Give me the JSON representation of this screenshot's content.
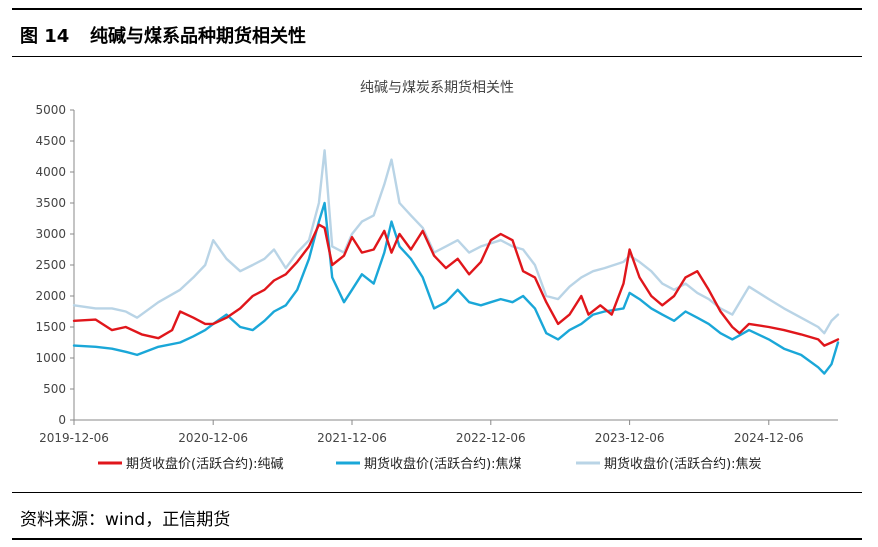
{
  "figure": {
    "label": "图 14",
    "title": "纯碱与煤系品种期货相关性",
    "source": "资料来源：wind，正信期货"
  },
  "chart_data": {
    "type": "line",
    "title": "纯碱与煤炭系期货相关性",
    "xlabel": "",
    "ylabel": "",
    "ylim": [
      0,
      5000
    ],
    "yticks": [
      0,
      500,
      1000,
      1500,
      2000,
      2500,
      3000,
      3500,
      4000,
      4500,
      5000
    ],
    "xlim": [
      "2019-12-06",
      "2025-06-06"
    ],
    "xticks": [
      "2019-12-06",
      "2020-12-06",
      "2021-12-06",
      "2022-12-06",
      "2023-12-06",
      "2024-12-06"
    ],
    "grid": false,
    "legend": "bottom",
    "colors": {
      "soda": "#e0161b",
      "coking_coal": "#1aa7d8",
      "coke": "#b9d4e6"
    },
    "series": [
      {
        "name": "期货收盘价(活跃合约):纯碱",
        "key": "soda",
        "points": [
          [
            "2019-12-06",
            1600
          ],
          [
            "2020-02-01",
            1620
          ],
          [
            "2020-03-15",
            1450
          ],
          [
            "2020-04-20",
            1500
          ],
          [
            "2020-06-01",
            1380
          ],
          [
            "2020-07-15",
            1320
          ],
          [
            "2020-08-20",
            1450
          ],
          [
            "2020-09-10",
            1750
          ],
          [
            "2020-10-15",
            1650
          ],
          [
            "2020-11-15",
            1550
          ],
          [
            "2020-12-06",
            1550
          ],
          [
            "2021-01-10",
            1650
          ],
          [
            "2021-02-15",
            1800
          ],
          [
            "2021-03-20",
            2000
          ],
          [
            "2021-04-20",
            2100
          ],
          [
            "2021-05-15",
            2250
          ],
          [
            "2021-06-15",
            2350
          ],
          [
            "2021-07-15",
            2550
          ],
          [
            "2021-08-15",
            2800
          ],
          [
            "2021-09-10",
            3150
          ],
          [
            "2021-09-25",
            3100
          ],
          [
            "2021-10-15",
            2500
          ],
          [
            "2021-11-15",
            2650
          ],
          [
            "2021-12-06",
            2950
          ],
          [
            "2022-01-01",
            2700
          ],
          [
            "2022-02-01",
            2750
          ],
          [
            "2022-03-01",
            3050
          ],
          [
            "2022-03-20",
            2700
          ],
          [
            "2022-04-10",
            3000
          ],
          [
            "2022-05-10",
            2750
          ],
          [
            "2022-06-10",
            3050
          ],
          [
            "2022-07-10",
            2650
          ],
          [
            "2022-08-10",
            2450
          ],
          [
            "2022-09-10",
            2600
          ],
          [
            "2022-10-10",
            2350
          ],
          [
            "2022-11-10",
            2550
          ],
          [
            "2022-12-06",
            2900
          ],
          [
            "2023-01-01",
            3000
          ],
          [
            "2023-02-01",
            2900
          ],
          [
            "2023-03-01",
            2400
          ],
          [
            "2023-04-01",
            2300
          ],
          [
            "2023-05-01",
            1900
          ],
          [
            "2023-06-01",
            1550
          ],
          [
            "2023-07-01",
            1700
          ],
          [
            "2023-08-01",
            2000
          ],
          [
            "2023-08-20",
            1700
          ],
          [
            "2023-09-20",
            1850
          ],
          [
            "2023-10-20",
            1700
          ],
          [
            "2023-11-20",
            2200
          ],
          [
            "2023-12-06",
            2750
          ],
          [
            "2024-01-01",
            2300
          ],
          [
            "2024-02-01",
            2000
          ],
          [
            "2024-03-01",
            1850
          ],
          [
            "2024-04-01",
            2000
          ],
          [
            "2024-05-01",
            2300
          ],
          [
            "2024-06-01",
            2400
          ],
          [
            "2024-07-01",
            2100
          ],
          [
            "2024-08-01",
            1750
          ],
          [
            "2024-09-01",
            1500
          ],
          [
            "2024-09-20",
            1400
          ],
          [
            "2024-10-15",
            1550
          ],
          [
            "2024-12-06",
            1500
          ],
          [
            "2025-01-15",
            1450
          ],
          [
            "2025-03-01",
            1380
          ],
          [
            "2025-04-15",
            1300
          ],
          [
            "2025-05-01",
            1200
          ],
          [
            "2025-05-20",
            1250
          ],
          [
            "2025-06-06",
            1300
          ]
        ]
      },
      {
        "name": "期货收盘价(活跃合约):焦煤",
        "key": "coking_coal",
        "points": [
          [
            "2019-12-06",
            1200
          ],
          [
            "2020-02-01",
            1180
          ],
          [
            "2020-03-15",
            1150
          ],
          [
            "2020-04-20",
            1100
          ],
          [
            "2020-05-20",
            1050
          ],
          [
            "2020-07-15",
            1180
          ],
          [
            "2020-09-10",
            1250
          ],
          [
            "2020-10-15",
            1350
          ],
          [
            "2020-11-15",
            1450
          ],
          [
            "2020-12-06",
            1550
          ],
          [
            "2021-01-10",
            1700
          ],
          [
            "2021-02-15",
            1500
          ],
          [
            "2021-03-20",
            1450
          ],
          [
            "2021-04-20",
            1600
          ],
          [
            "2021-05-15",
            1750
          ],
          [
            "2021-06-15",
            1850
          ],
          [
            "2021-07-15",
            2100
          ],
          [
            "2021-08-15",
            2600
          ],
          [
            "2021-09-10",
            3200
          ],
          [
            "2021-09-25",
            3500
          ],
          [
            "2021-10-15",
            2300
          ],
          [
            "2021-11-15",
            1900
          ],
          [
            "2021-12-06",
            2100
          ],
          [
            "2022-01-01",
            2350
          ],
          [
            "2022-02-01",
            2200
          ],
          [
            "2022-03-01",
            2700
          ],
          [
            "2022-03-20",
            3200
          ],
          [
            "2022-04-10",
            2800
          ],
          [
            "2022-05-10",
            2600
          ],
          [
            "2022-06-10",
            2300
          ],
          [
            "2022-07-10",
            1800
          ],
          [
            "2022-08-10",
            1900
          ],
          [
            "2022-09-10",
            2100
          ],
          [
            "2022-10-10",
            1900
          ],
          [
            "2022-11-10",
            1850
          ],
          [
            "2022-12-06",
            1900
          ],
          [
            "2023-01-01",
            1950
          ],
          [
            "2023-02-01",
            1900
          ],
          [
            "2023-03-01",
            2000
          ],
          [
            "2023-04-01",
            1800
          ],
          [
            "2023-05-01",
            1400
          ],
          [
            "2023-06-01",
            1300
          ],
          [
            "2023-07-01",
            1450
          ],
          [
            "2023-08-01",
            1550
          ],
          [
            "2023-09-01",
            1700
          ],
          [
            "2023-10-01",
            1750
          ],
          [
            "2023-11-20",
            1800
          ],
          [
            "2023-12-06",
            2050
          ],
          [
            "2024-01-01",
            1950
          ],
          [
            "2024-02-01",
            1800
          ],
          [
            "2024-03-01",
            1700
          ],
          [
            "2024-04-01",
            1600
          ],
          [
            "2024-05-01",
            1750
          ],
          [
            "2024-06-01",
            1650
          ],
          [
            "2024-07-01",
            1550
          ],
          [
            "2024-08-01",
            1400
          ],
          [
            "2024-09-01",
            1300
          ],
          [
            "2024-10-15",
            1450
          ],
          [
            "2024-12-06",
            1300
          ],
          [
            "2025-01-15",
            1150
          ],
          [
            "2025-03-01",
            1050
          ],
          [
            "2025-04-15",
            850
          ],
          [
            "2025-05-01",
            750
          ],
          [
            "2025-05-20",
            900
          ],
          [
            "2025-06-06",
            1250
          ]
        ]
      },
      {
        "name": "期货收盘价(活跃合约):焦炭",
        "key": "coke",
        "points": [
          [
            "2019-12-06",
            1850
          ],
          [
            "2020-02-01",
            1800
          ],
          [
            "2020-03-15",
            1800
          ],
          [
            "2020-04-20",
            1750
          ],
          [
            "2020-05-20",
            1650
          ],
          [
            "2020-07-15",
            1900
          ],
          [
            "2020-09-10",
            2100
          ],
          [
            "2020-10-15",
            2300
          ],
          [
            "2020-11-15",
            2500
          ],
          [
            "2020-12-06",
            2900
          ],
          [
            "2021-01-10",
            2600
          ],
          [
            "2021-02-15",
            2400
          ],
          [
            "2021-03-20",
            2500
          ],
          [
            "2021-04-20",
            2600
          ],
          [
            "2021-05-15",
            2750
          ],
          [
            "2021-06-15",
            2450
          ],
          [
            "2021-07-15",
            2700
          ],
          [
            "2021-08-15",
            2900
          ],
          [
            "2021-09-10",
            3500
          ],
          [
            "2021-09-25",
            4350
          ],
          [
            "2021-10-15",
            2800
          ],
          [
            "2021-11-15",
            2700
          ],
          [
            "2021-12-06",
            3000
          ],
          [
            "2022-01-01",
            3200
          ],
          [
            "2022-02-01",
            3300
          ],
          [
            "2022-03-01",
            3800
          ],
          [
            "2022-03-20",
            4200
          ],
          [
            "2022-04-10",
            3500
          ],
          [
            "2022-05-10",
            3300
          ],
          [
            "2022-06-10",
            3100
          ],
          [
            "2022-07-10",
            2700
          ],
          [
            "2022-08-10",
            2800
          ],
          [
            "2022-09-10",
            2900
          ],
          [
            "2022-10-10",
            2700
          ],
          [
            "2022-11-10",
            2800
          ],
          [
            "2022-12-06",
            2850
          ],
          [
            "2023-01-01",
            2900
          ],
          [
            "2023-02-01",
            2800
          ],
          [
            "2023-03-01",
            2750
          ],
          [
            "2023-04-01",
            2500
          ],
          [
            "2023-05-01",
            2000
          ],
          [
            "2023-06-01",
            1950
          ],
          [
            "2023-07-01",
            2150
          ],
          [
            "2023-08-01",
            2300
          ],
          [
            "2023-09-01",
            2400
          ],
          [
            "2023-10-01",
            2450
          ],
          [
            "2023-11-20",
            2550
          ],
          [
            "2023-12-06",
            2650
          ],
          [
            "2024-01-01",
            2550
          ],
          [
            "2024-02-01",
            2400
          ],
          [
            "2024-03-01",
            2200
          ],
          [
            "2024-04-01",
            2100
          ],
          [
            "2024-05-01",
            2200
          ],
          [
            "2024-06-01",
            2050
          ],
          [
            "2024-07-01",
            1950
          ],
          [
            "2024-08-01",
            1800
          ],
          [
            "2024-09-01",
            1700
          ],
          [
            "2024-10-15",
            2150
          ],
          [
            "2024-12-06",
            1950
          ],
          [
            "2025-01-15",
            1800
          ],
          [
            "2025-03-01",
            1650
          ],
          [
            "2025-04-15",
            1500
          ],
          [
            "2025-05-01",
            1400
          ],
          [
            "2025-05-20",
            1600
          ],
          [
            "2025-06-06",
            1700
          ]
        ]
      }
    ]
  }
}
